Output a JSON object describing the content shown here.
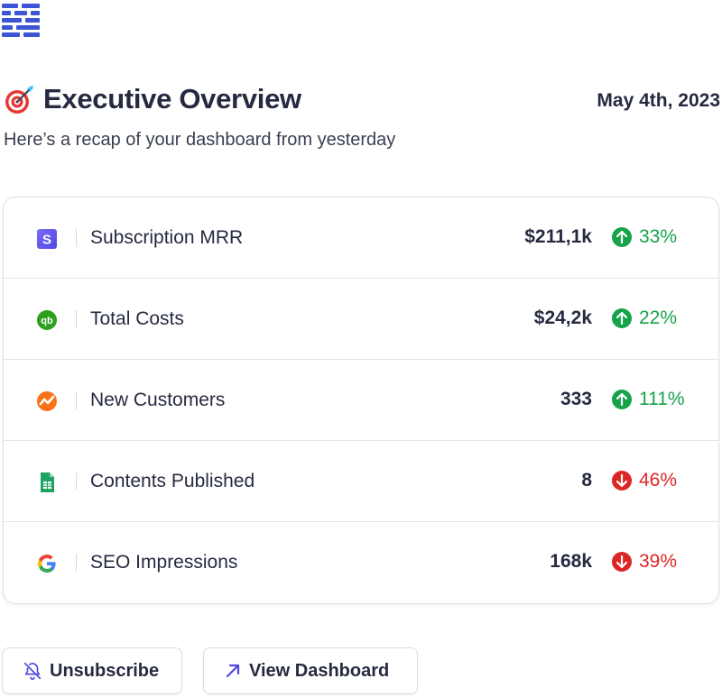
{
  "header": {
    "title": "Executive Overview",
    "date": "May 4th, 2023",
    "subtitle": "Here’s a recap of your dashboard from yesterday",
    "title_icon": "target-dart-icon",
    "logo_icon": "brand-logo-icon"
  },
  "metrics": [
    {
      "label": "Subscription MRR",
      "value": "$211,1k",
      "change": "33%",
      "direction": "up",
      "icon": "stripe-icon"
    },
    {
      "label": "Total Costs",
      "value": "$24,2k",
      "change": "22%",
      "direction": "up",
      "icon": "quickbooks-icon"
    },
    {
      "label": "New Customers",
      "value": "333",
      "change": "111%",
      "direction": "up",
      "icon": "analytics-icon"
    },
    {
      "label": "Contents Published",
      "value": "8",
      "change": "46%",
      "direction": "down",
      "icon": "google-sheets-icon"
    },
    {
      "label": "SEO Impressions",
      "value": "168k",
      "change": "39%",
      "direction": "down",
      "icon": "google-icon"
    }
  ],
  "actions": {
    "unsubscribe_label": "Unsubscribe",
    "view_dashboard_label": "View Dashboard"
  },
  "colors": {
    "brand": "#3b55d4",
    "positive": "#16a34a",
    "negative": "#dc2626",
    "text": "#262a40"
  }
}
